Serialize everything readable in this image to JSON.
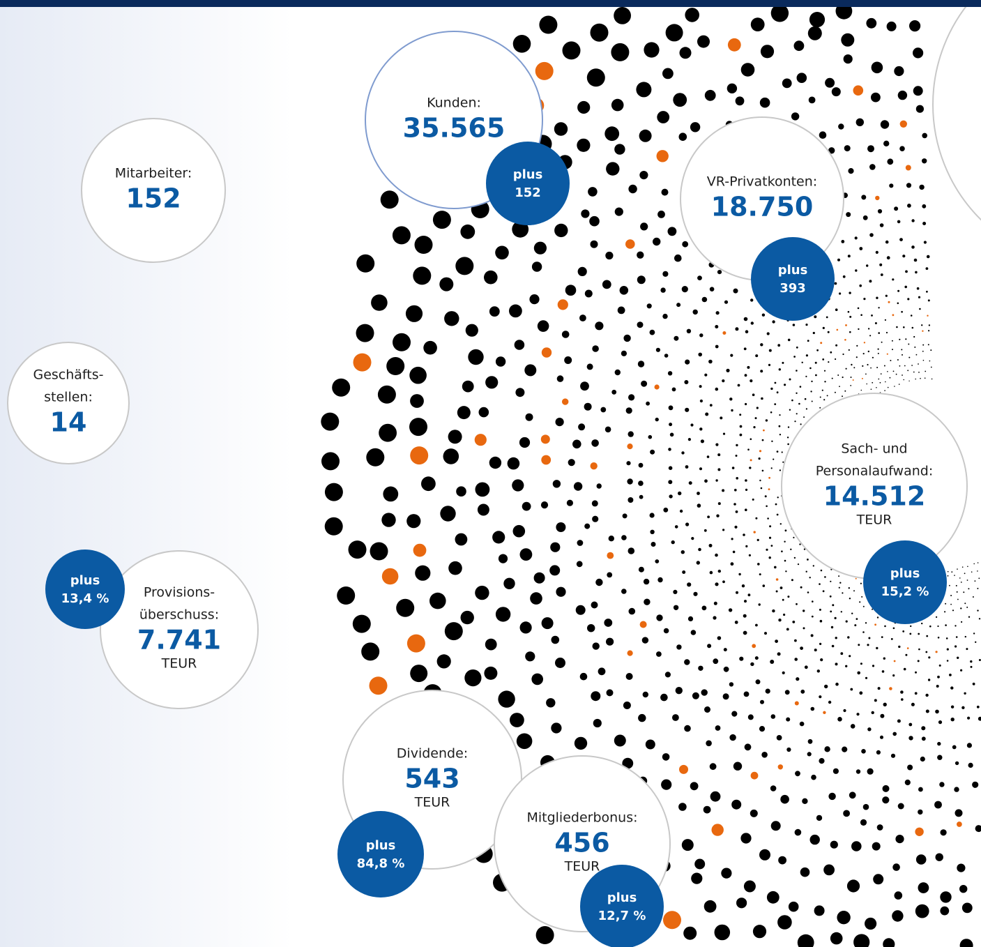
{
  "items": [
    {
      "label": [
        "Kunden:"
      ],
      "value": "35.565",
      "badge": [
        "plus",
        "152"
      ]
    },
    {
      "label": [
        "Mitarbeiter:"
      ],
      "value": "152"
    },
    {
      "label": [
        "VR-Privatkonten:"
      ],
      "value": "18.750",
      "badge": [
        "plus",
        "393"
      ]
    },
    {
      "label": [
        "Geschäfts-",
        "stellen:"
      ],
      "value": "14"
    },
    {
      "label": [
        "Sach- und",
        "Personalaufwand:"
      ],
      "value": "14.512",
      "unit": "TEUR",
      "badge": [
        "plus",
        "15,2 %"
      ]
    },
    {
      "label": [
        "Provisions-",
        "überschuss:"
      ],
      "value": "7.741",
      "unit": "TEUR",
      "badge": [
        "plus",
        "13,4 %"
      ]
    },
    {
      "label": [
        "Dividende:"
      ],
      "value": "543",
      "unit": "TEUR",
      "badge": [
        "plus",
        "84,8 %"
      ]
    },
    {
      "label": [
        "Mitgliederbonus:"
      ],
      "value": "456",
      "unit": "TEUR",
      "badge": [
        "plus",
        "12,7 %"
      ]
    }
  ]
}
